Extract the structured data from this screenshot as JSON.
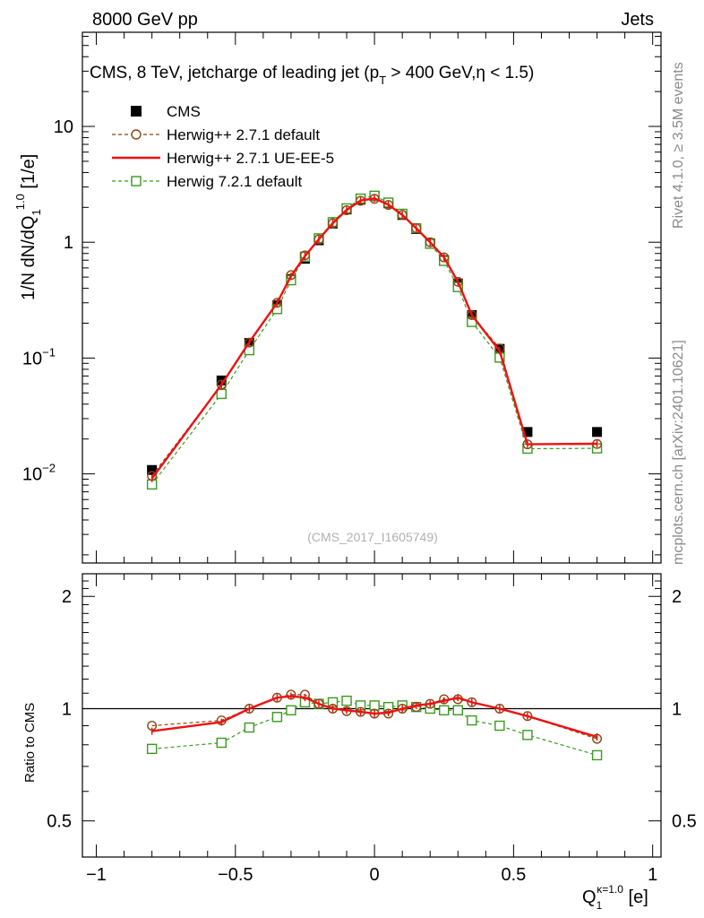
{
  "header": {
    "left": "8000 GeV pp",
    "right": "Jets"
  },
  "side_labels": {
    "rivet": "Rivet 4.1.0, ≥ 3.5M events",
    "mcplots": "mcplots.cern.ch [arXiv:2401.10621]"
  },
  "watermark": "(CMS_2017_I1605749)",
  "chart_data": [
    {
      "type": "line",
      "title": "CMS, 8 TeV, jetcharge of leading jet (p_T > 400 GeV,η < 1.5)",
      "ylabel": "1/N dN/dQ_1^1.0 [1/e]",
      "yscale": "log",
      "xlim": [
        -1.05,
        1.03
      ],
      "ylim": [
        0.0017,
        65
      ],
      "ytick_labels": [
        "10^-2",
        "10^-1",
        "1",
        "10"
      ],
      "x": [
        -0.8,
        -0.55,
        -0.45,
        -0.35,
        -0.3,
        -0.25,
        -0.2,
        -0.15,
        -0.1,
        -0.05,
        0.0,
        0.05,
        0.1,
        0.15,
        0.2,
        0.25,
        0.3,
        0.35,
        0.45,
        0.55,
        0.8
      ],
      "legend": {
        "position": "top-left"
      },
      "series": [
        {
          "name": "CMS",
          "style": "marker-square-filled",
          "color": "#000000",
          "values": [
            0.0108,
            0.064,
            0.135,
            0.285,
            0.48,
            0.72,
            1.04,
            1.45,
            1.92,
            2.33,
            2.5,
            2.17,
            1.72,
            1.3,
            0.98,
            0.7,
            0.44,
            0.235,
            0.12,
            0.023,
            0.023
          ]
        },
        {
          "name": "Herwig++ 2.7.1 default",
          "style": "dashed-circle",
          "color": "#8b4513",
          "values": [
            0.0096,
            0.059,
            0.136,
            0.3,
            0.52,
            0.77,
            1.06,
            1.46,
            1.89,
            2.28,
            2.37,
            2.1,
            1.72,
            1.32,
            1.0,
            0.74,
            0.455,
            0.235,
            0.121,
            0.018,
            0.0181
          ]
        },
        {
          "name": "Herwig++ 2.7.1 UE-EE-5",
          "style": "solid",
          "color": "#ee1111",
          "values": [
            0.0091,
            0.059,
            0.137,
            0.3,
            0.51,
            0.76,
            1.06,
            1.46,
            1.9,
            2.29,
            2.39,
            2.11,
            1.72,
            1.32,
            1.0,
            0.74,
            0.455,
            0.235,
            0.115,
            0.018,
            0.0182
          ]
        },
        {
          "name": "Herwig 7.2.1 default",
          "style": "dashed-square-open",
          "color": "#3a9a1e",
          "values": [
            0.0081,
            0.049,
            0.117,
            0.265,
            0.47,
            0.75,
            1.08,
            1.49,
            1.96,
            2.38,
            2.52,
            2.2,
            1.76,
            1.32,
            0.97,
            0.69,
            0.41,
            0.205,
            0.101,
            0.0165,
            0.0166
          ]
        }
      ]
    },
    {
      "type": "line",
      "ylabel": "Ratio to CMS",
      "xlabel": "Q_1^κ=1.0 [e]",
      "xlim": [
        -1.05,
        1.03
      ],
      "ylim": [
        0.4,
        2.3
      ],
      "yscale": "log",
      "xtick_labels": [
        "−1",
        "−0.5",
        "0",
        "0.5",
        "1"
      ],
      "ytick_labels": [
        "0.5",
        "1",
        "2"
      ],
      "reference_line": 1,
      "x": [
        -0.8,
        -0.55,
        -0.45,
        -0.35,
        -0.3,
        -0.25,
        -0.2,
        -0.15,
        -0.1,
        -0.05,
        0.0,
        0.05,
        0.1,
        0.15,
        0.2,
        0.25,
        0.3,
        0.35,
        0.45,
        0.55,
        0.8
      ],
      "series": [
        {
          "name": "Herwig++ 2.7.1 default",
          "style": "dashed-circle",
          "color": "#8b4513",
          "values": [
            0.9,
            0.93,
            1.0,
            1.07,
            1.09,
            1.09,
            1.03,
            1.0,
            0.985,
            0.98,
            0.97,
            0.97,
            1.0,
            1.01,
            1.03,
            1.06,
            1.06,
            1.04,
            1.0,
            0.955,
            0.83
          ]
        },
        {
          "name": "Herwig++ 2.7.1 UE-EE-5",
          "style": "solid",
          "color": "#ee1111",
          "values": [
            0.87,
            0.92,
            1.0,
            1.07,
            1.08,
            1.07,
            1.03,
            1.0,
            0.99,
            0.98,
            0.97,
            0.975,
            1.0,
            1.02,
            1.03,
            1.05,
            1.07,
            1.04,
            1.0,
            0.955,
            0.84
          ]
        },
        {
          "name": "Herwig 7.2.1 default",
          "style": "dashed-square-open",
          "color": "#3a9a1e",
          "values": [
            0.78,
            0.81,
            0.89,
            0.95,
            0.99,
            1.04,
            1.03,
            1.04,
            1.05,
            1.02,
            1.02,
            1.01,
            1.02,
            1.01,
            1.0,
            0.99,
            0.99,
            0.93,
            0.9,
            0.85,
            0.75
          ]
        }
      ]
    }
  ]
}
